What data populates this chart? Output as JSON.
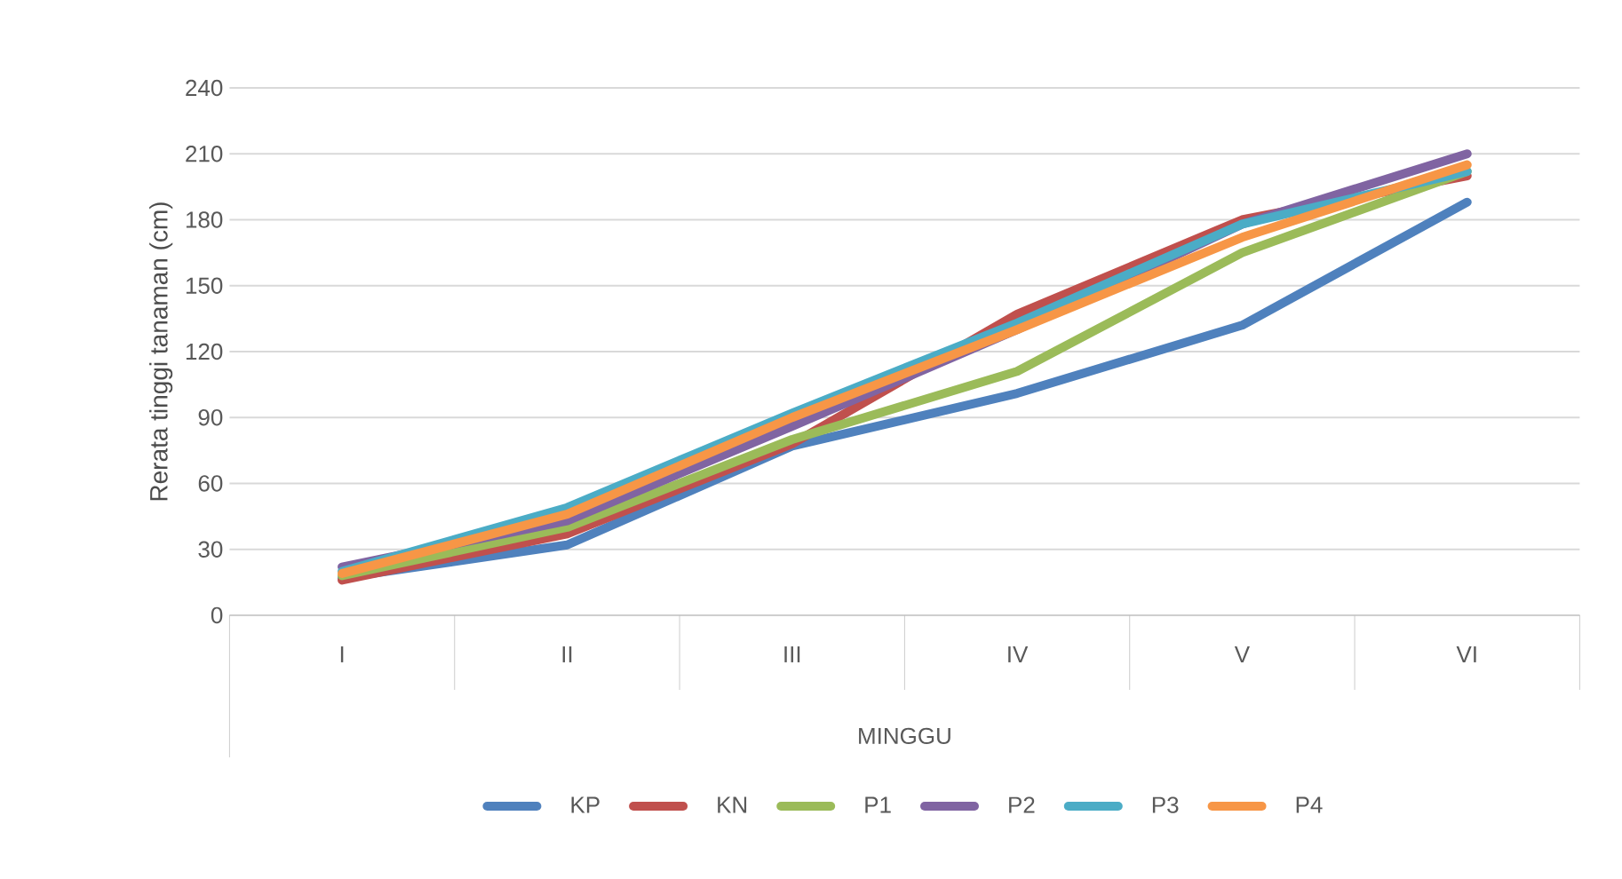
{
  "chart_data": {
    "type": "line",
    "xlabel": "MINGGU",
    "ylabel": "Rerata tinggi tanaman (cm)",
    "categories": [
      "I",
      "II",
      "III",
      "IV",
      "V",
      "VI"
    ],
    "ylim": [
      0,
      240
    ],
    "yticks": [
      0,
      30,
      60,
      90,
      120,
      150,
      180,
      210,
      240
    ],
    "grid": "y",
    "legend": "bottom",
    "line_style": "solid",
    "series": [
      {
        "name": "KP",
        "color": "#4f81bd",
        "values": [
          17,
          32,
          77,
          101,
          132,
          188
        ]
      },
      {
        "name": "KN",
        "color": "#c0504d",
        "values": [
          16,
          37,
          78,
          137,
          180,
          200
        ]
      },
      {
        "name": "P1",
        "color": "#9bbb59",
        "values": [
          18,
          40,
          80,
          111,
          165,
          202
        ]
      },
      {
        "name": "P2",
        "color": "#8064a2",
        "values": [
          22,
          43,
          86,
          130,
          178,
          210
        ]
      },
      {
        "name": "P3",
        "color": "#4bacc6",
        "values": [
          20,
          49,
          92,
          133,
          178,
          202
        ]
      },
      {
        "name": "P4",
        "color": "#f79646",
        "values": [
          19,
          46,
          90,
          130,
          172,
          205
        ]
      }
    ]
  }
}
